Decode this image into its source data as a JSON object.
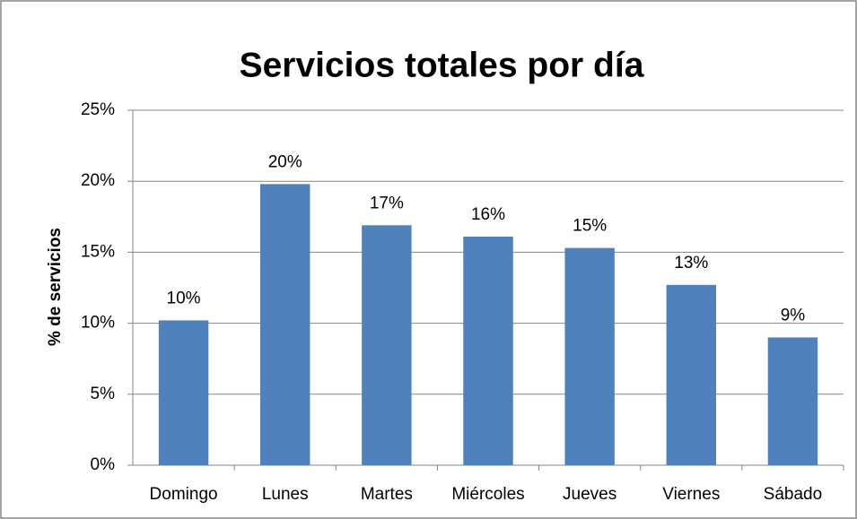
{
  "chart_data": {
    "type": "bar",
    "title": "Servicios totales por día",
    "ylabel": "% de servicios",
    "categories": [
      "Domingo",
      "Lunes",
      "Martes",
      "Miércoles",
      "Jueves",
      "Viernes",
      "Sábado"
    ],
    "values": [
      10.2,
      19.8,
      16.9,
      16.1,
      15.3,
      12.7,
      9.0
    ],
    "value_labels": [
      "10%",
      "20%",
      "17%",
      "16%",
      "15%",
      "13%",
      "9%"
    ],
    "color": "#4f81bd",
    "ylim": [
      0,
      25
    ],
    "yticks": [
      {
        "value": 0,
        "label": "0%"
      },
      {
        "value": 5,
        "label": "5%"
      },
      {
        "value": 10,
        "label": "10%"
      },
      {
        "value": 15,
        "label": "15%"
      },
      {
        "value": 20,
        "label": "20%"
      },
      {
        "value": 25,
        "label": "25%"
      }
    ],
    "grid": true
  }
}
